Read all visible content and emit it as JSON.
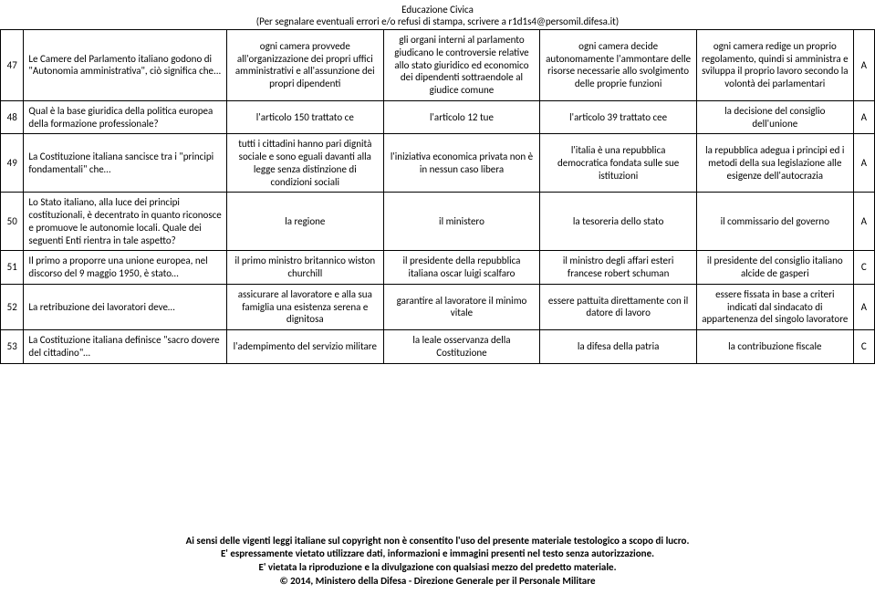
{
  "header": {
    "title": "Educazione Civica",
    "subtitle": "(Per segnalare eventuali errori e/o refusi di stampa, scrivere a r1d1s4@persomil.difesa.it)"
  },
  "rows": [
    {
      "n": "47",
      "q": "Le Camere del Parlamento italiano godono di \"Autonomia amministrativa\", ciò significa che...",
      "a": "ogni camera provvede all'organizzazione dei propri uffici amministrativi e all'assunzione dei propri dipendenti",
      "b": "gli organi interni al parlamento giudicano le controversie relative allo stato giuridico ed economico dei dipendenti sottraendole al giudice comune",
      "c": "ogni camera decide autonomamente l'ammontare delle risorse necessarie allo svolgimento delle proprie funzioni",
      "d": "ogni camera redige un proprio regolamento, quindi si amministra e sviluppa il proprio lavoro secondo la volontà dei parlamentari",
      "ans": "A"
    },
    {
      "n": "48",
      "q": "Qual è la base giuridica della politica europea della formazione professionale?",
      "a": "l'articolo 150 trattato ce",
      "b": "l'articolo 12 tue",
      "c": "l'articolo 39 trattato cee",
      "d": "la decisione del consiglio dell'unione",
      "ans": "A"
    },
    {
      "n": "49",
      "q": "La Costituzione italiana sancisce tra i \"principi fondamentali\" che…",
      "a": "tutti i cittadini hanno pari dignità sociale e sono eguali davanti alla legge senza distinzione di condizioni sociali",
      "b": "l'iniziativa economica privata non è in nessun caso libera",
      "c": "l'italia è una repubblica democratica fondata sulle sue istituzioni",
      "d": "la repubblica adegua i principi ed i metodi della sua legislazione alle esigenze dell'autocrazia",
      "ans": "A"
    },
    {
      "n": "50",
      "q": "Lo Stato italiano, alla luce dei principi costituzionali, è decentrato in quanto riconosce e promuove le autonomie locali. Quale dei seguenti Enti rientra in tale aspetto?",
      "a": "la regione",
      "b": "il ministero",
      "c": "la tesoreria dello stato",
      "d": "il commissario del governo",
      "ans": "A"
    },
    {
      "n": "51",
      "q": "Il primo a proporre una unione europea, nel discorso del 9 maggio 1950, è stato…",
      "a": "il primo ministro britannico wiston churchill",
      "b": "il presidente della repubblica italiana oscar luigi scalfaro",
      "c": "il ministro degli affari esteri francese robert schuman",
      "d": "il presidente del consiglio italiano alcide de gasperi",
      "ans": "C"
    },
    {
      "n": "52",
      "q": "La retribuzione dei lavoratori deve…",
      "a": "assicurare al lavoratore e alla sua famiglia una esistenza serena e dignitosa",
      "b": "garantire al lavoratore il minimo vitale",
      "c": "essere pattuita direttamente con il datore di lavoro",
      "d": "essere fissata in base a criteri indicati dal sindacato di appartenenza del singolo lavoratore",
      "ans": "A"
    },
    {
      "n": "53",
      "q": "La Costituzione italiana definisce \"sacro dovere del cittadino\"…",
      "a": "l'adempimento del servizio militare",
      "b": "la leale osservanza della Costituzione",
      "c": "la difesa della patria",
      "d": "la contribuzione fiscale",
      "ans": "C"
    }
  ],
  "footer": {
    "l1": "Ai sensi delle vigenti leggi italiane sul copyright non è consentito l'uso del presente materiale testologico a scopo di lucro.",
    "l2": "E' espressamente vietato utilizzare dati, informazioni e immagini presenti nel testo senza autorizzazione.",
    "l3": "E' vietata la riproduzione e la divulgazione con qualsiasi mezzo del predetto materiale.",
    "l4": "© 2014, Ministero della Difesa - Direzione Generale per il Personale Militare"
  }
}
